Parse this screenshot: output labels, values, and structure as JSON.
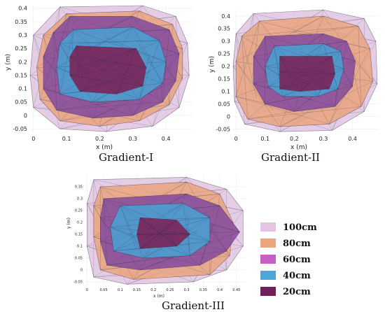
{
  "chart_data": [
    {
      "type": "area",
      "title": "Gradient-I",
      "xlabel": "x (m)",
      "ylabel": "y (m)",
      "xlim": [
        -0.01,
        0.48
      ],
      "ylim": [
        -0.065,
        0.41
      ],
      "xticks": [
        "0",
        "0.1",
        "0.2",
        "0.3",
        "0.4"
      ],
      "yticks": [
        "-0.05",
        "0",
        "0.05",
        "0.1",
        "0.15",
        "0.2",
        "0.25",
        "0.3",
        "0.35",
        "0.4"
      ],
      "series": [
        {
          "name": "100cm",
          "points": [
            [
              0.08,
              0.405
            ],
            [
              0.33,
              0.41
            ],
            [
              0.43,
              0.37
            ],
            [
              0.465,
              0.27
            ],
            [
              0.47,
              0.15
            ],
            [
              0.44,
              0.03
            ],
            [
              0.36,
              -0.04
            ],
            [
              0.22,
              -0.06
            ],
            [
              0.08,
              -0.05
            ],
            [
              0.0,
              0.03
            ],
            [
              -0.01,
              0.15
            ],
            [
              0.0,
              0.3
            ]
          ]
        },
        {
          "name": "80cm",
          "points": [
            [
              0.1,
              0.38
            ],
            [
              0.32,
              0.39
            ],
            [
              0.42,
              0.34
            ],
            [
              0.45,
              0.25
            ],
            [
              0.45,
              0.14
            ],
            [
              0.41,
              0.04
            ],
            [
              0.32,
              -0.02
            ],
            [
              0.2,
              -0.04
            ],
            [
              0.08,
              -0.02
            ],
            [
              0.02,
              0.06
            ],
            [
              0.01,
              0.18
            ],
            [
              0.03,
              0.3
            ]
          ]
        },
        {
          "name": "60cm",
          "points": [
            [
              0.11,
              0.37
            ],
            [
              0.3,
              0.37
            ],
            [
              0.41,
              0.32
            ],
            [
              0.44,
              0.23
            ],
            [
              0.43,
              0.13
            ],
            [
              0.39,
              0.05
            ],
            [
              0.3,
              0.0
            ],
            [
              0.18,
              -0.01
            ],
            [
              0.07,
              0.02
            ],
            [
              0.03,
              0.1
            ],
            [
              0.03,
              0.22
            ],
            [
              0.06,
              0.31
            ]
          ]
        },
        {
          "name": "40cm",
          "points": [
            [
              0.12,
              0.32
            ],
            [
              0.3,
              0.33
            ],
            [
              0.38,
              0.28
            ],
            [
              0.4,
              0.2
            ],
            [
              0.39,
              0.12
            ],
            [
              0.32,
              0.06
            ],
            [
              0.18,
              0.05
            ],
            [
              0.08,
              0.08
            ],
            [
              0.07,
              0.18
            ],
            [
              0.08,
              0.27
            ]
          ]
        },
        {
          "name": "20cm",
          "points": [
            [
              0.13,
              0.26
            ],
            [
              0.31,
              0.25
            ],
            [
              0.34,
              0.18
            ],
            [
              0.33,
              0.11
            ],
            [
              0.25,
              0.08
            ],
            [
              0.14,
              0.09
            ],
            [
              0.11,
              0.15
            ],
            [
              0.11,
              0.22
            ]
          ]
        }
      ]
    },
    {
      "type": "area",
      "title": "Gradient-II",
      "xlabel": "x (m)",
      "ylabel": "y (m)",
      "xlim": [
        -0.01,
        0.49
      ],
      "ylim": [
        -0.065,
        0.425
      ],
      "xticks": [
        "0",
        "0.1",
        "0.2",
        "0.3",
        "0.4"
      ],
      "yticks": [
        "-0.05",
        "0",
        "0.05",
        "0.1",
        "0.15",
        "0.2",
        "0.25",
        "0.3",
        "0.35",
        "0.4"
      ],
      "series": [
        {
          "name": "100cm",
          "points": [
            [
              0.06,
              0.41
            ],
            [
              0.3,
              0.425
            ],
            [
              0.44,
              0.39
            ],
            [
              0.48,
              0.3
            ],
            [
              0.485,
              0.13
            ],
            [
              0.44,
              0.02
            ],
            [
              0.33,
              -0.055
            ],
            [
              0.15,
              -0.06
            ],
            [
              0.03,
              -0.03
            ],
            [
              -0.005,
              0.06
            ],
            [
              -0.01,
              0.2
            ],
            [
              0.0,
              0.33
            ]
          ]
        },
        {
          "name": "80cm",
          "points": [
            [
              0.08,
              0.38
            ],
            [
              0.3,
              0.4
            ],
            [
              0.42,
              0.36
            ],
            [
              0.46,
              0.27
            ],
            [
              0.47,
              0.14
            ],
            [
              0.43,
              0.04
            ],
            [
              0.32,
              -0.03
            ],
            [
              0.15,
              -0.04
            ],
            [
              0.04,
              -0.01
            ],
            [
              0.0,
              0.08
            ],
            [
              0.0,
              0.22
            ],
            [
              0.02,
              0.32
            ]
          ]
        },
        {
          "name": "60cm",
          "points": [
            [
              0.1,
              0.32
            ],
            [
              0.3,
              0.33
            ],
            [
              0.38,
              0.3
            ],
            [
              0.41,
              0.22
            ],
            [
              0.4,
              0.12
            ],
            [
              0.34,
              0.04
            ],
            [
              0.2,
              0.02
            ],
            [
              0.1,
              0.05
            ],
            [
              0.06,
              0.13
            ],
            [
              0.06,
              0.24
            ]
          ]
        },
        {
          "name": "40cm",
          "points": [
            [
              0.13,
              0.28
            ],
            [
              0.3,
              0.29
            ],
            [
              0.36,
              0.26
            ],
            [
              0.37,
              0.19
            ],
            [
              0.35,
              0.11
            ],
            [
              0.28,
              0.08
            ],
            [
              0.16,
              0.08
            ],
            [
              0.11,
              0.12
            ],
            [
              0.1,
              0.2
            ]
          ]
        },
        {
          "name": "20cm",
          "points": [
            [
              0.15,
              0.24
            ],
            [
              0.33,
              0.24
            ],
            [
              0.34,
              0.17
            ],
            [
              0.32,
              0.11
            ],
            [
              0.22,
              0.1
            ],
            [
              0.15,
              0.11
            ],
            [
              0.15,
              0.18
            ]
          ]
        }
      ]
    },
    {
      "type": "area",
      "title": "Gradient-III",
      "xlabel": "x (m)",
      "ylabel": "y (m)",
      "xlim": [
        -0.005,
        0.48
      ],
      "ylim": [
        -0.065,
        0.4
      ],
      "xticks": [
        "0",
        "0.05",
        "0.1",
        "0.15",
        "0.2",
        "0.25",
        "0.3",
        "0.35",
        "0.4",
        "0.45"
      ],
      "yticks": [
        "-0.05",
        "0",
        "0.05",
        "0.1",
        "0.15",
        "0.2",
        "0.25",
        "0.3",
        "0.35"
      ],
      "series": [
        {
          "name": "100cm",
          "points": [
            [
              0.02,
              0.38
            ],
            [
              0.3,
              0.39
            ],
            [
              0.42,
              0.34
            ],
            [
              0.47,
              0.25
            ],
            [
              0.47,
              0.1
            ],
            [
              0.42,
              0.0
            ],
            [
              0.32,
              -0.05
            ],
            [
              0.12,
              -0.06
            ],
            [
              0.02,
              -0.03
            ],
            [
              0.0,
              0.1
            ],
            [
              0.0,
              0.28
            ]
          ]
        },
        {
          "name": "80cm",
          "points": [
            [
              0.04,
              0.35
            ],
            [
              0.3,
              0.37
            ],
            [
              0.4,
              0.32
            ],
            [
              0.44,
              0.2
            ],
            [
              0.43,
              0.06
            ],
            [
              0.37,
              -0.02
            ],
            [
              0.14,
              -0.04
            ],
            [
              0.04,
              0.0
            ],
            [
              0.02,
              0.14
            ],
            [
              0.02,
              0.27
            ]
          ]
        },
        {
          "name": "60cm",
          "points": [
            [
              0.05,
              0.3
            ],
            [
              0.3,
              0.32
            ],
            [
              0.4,
              0.27
            ],
            [
              0.46,
              0.16
            ],
            [
              0.42,
              0.08
            ],
            [
              0.34,
              0.02
            ],
            [
              0.16,
              0.0
            ],
            [
              0.06,
              0.02
            ],
            [
              0.04,
              0.12
            ],
            [
              0.04,
              0.22
            ]
          ]
        },
        {
          "name": "40cm",
          "points": [
            [
              0.1,
              0.27
            ],
            [
              0.29,
              0.28
            ],
            [
              0.37,
              0.22
            ],
            [
              0.37,
              0.12
            ],
            [
              0.31,
              0.06
            ],
            [
              0.17,
              0.05
            ],
            [
              0.08,
              0.08
            ],
            [
              0.07,
              0.18
            ]
          ]
        },
        {
          "name": "20cm",
          "points": [
            [
              0.16,
              0.22
            ],
            [
              0.27,
              0.21
            ],
            [
              0.31,
              0.15
            ],
            [
              0.27,
              0.1
            ],
            [
              0.16,
              0.09
            ],
            [
              0.15,
              0.15
            ]
          ]
        }
      ]
    }
  ],
  "legend": {
    "placement": "right",
    "items": [
      {
        "label": "100cm",
        "color": "#e3c5e3"
      },
      {
        "label": "80cm",
        "color": "#eda57d"
      },
      {
        "label": "60cm",
        "color": "#c760c4"
      },
      {
        "label": "40cm",
        "color": "#4aa7d6"
      },
      {
        "label": "20cm",
        "color": "#6e1f5c"
      }
    ]
  },
  "fills": {
    "100cm": "#dcb8dc",
    "80cm": "#e9a37e",
    "60cm": "#8a4f9c",
    "40cm": "#4d9ccf",
    "20cm": "#7a2a5e"
  },
  "fill_opacity": {
    "100cm": 0.7,
    "80cm": 0.85,
    "60cm": 0.9,
    "40cm": 0.92,
    "20cm": 0.95
  }
}
